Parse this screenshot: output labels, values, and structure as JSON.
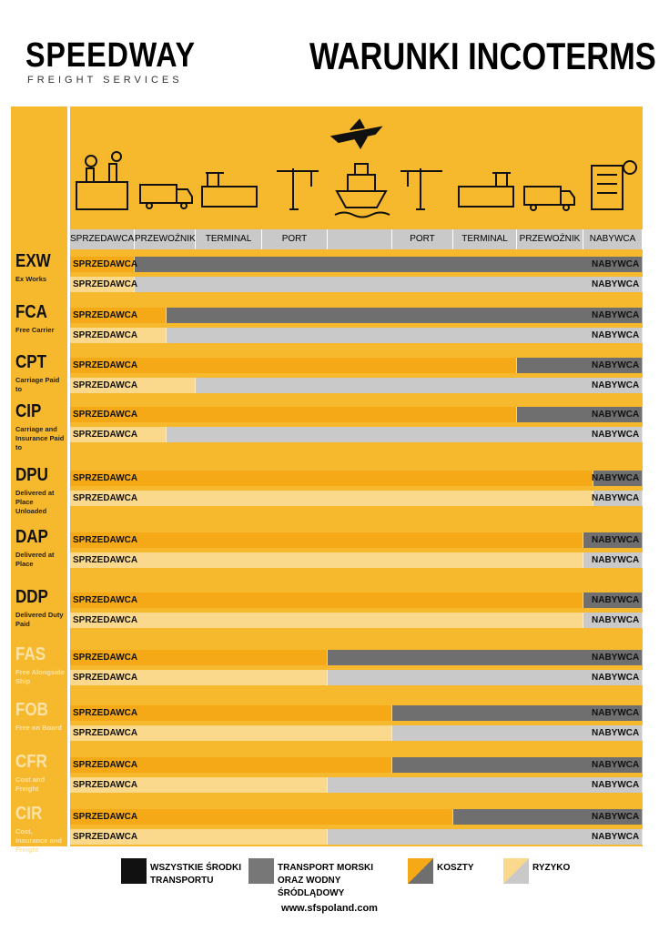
{
  "header": {
    "brand": "SPEEDWAY",
    "brand_sub": "FREIGHT SERVICES",
    "title": "WARUNKI INCOTERMS"
  },
  "columns": [
    "SPRZEDAWCA",
    "PRZEWOŹNIK",
    "TERMINAL",
    "PORT",
    "PORT",
    "TERMINAL",
    "PRZEWOŹNIK",
    "NABYWCA"
  ],
  "terms": [
    {
      "code": "EXW",
      "desc": "Ex Works",
      "cost": {
        "seller": "SPRZEDAWCA",
        "buyer": "NABYWCA"
      },
      "risk": {
        "seller": "SPRZEDAWCA",
        "buyer": "NABYWCA"
      }
    },
    {
      "code": "FCA",
      "desc": "Free Carrier",
      "cost": {
        "seller": "SPRZEDAWCA",
        "buyer": "NABYWCA"
      },
      "risk": {
        "seller": "SPRZEDAWCA",
        "buyer": "NABYWCA"
      }
    },
    {
      "code": "CPT",
      "desc": "Carriage Paid to",
      "cost": {
        "seller": "SPRZEDAWCA",
        "buyer": "NABYWCA"
      },
      "risk": {
        "seller": "SPRZEDAWCA",
        "buyer": "NABYWCA"
      }
    },
    {
      "code": "CIP",
      "desc": "Carriage and Insurance Paid to",
      "cost": {
        "seller": "SPRZEDAWCA",
        "buyer": "NABYWCA"
      },
      "risk": {
        "seller": "SPRZEDAWCA",
        "buyer": "NABYWCA"
      }
    },
    {
      "code": "DPU",
      "desc": "Delivered at Place Unloaded",
      "cost": {
        "seller": "SPRZEDAWCA",
        "buyer": "NABYWCA"
      },
      "risk": {
        "seller": "SPRZEDAWCA",
        "buyer": "NABYWCA"
      }
    },
    {
      "code": "DAP",
      "desc": "Delivered at Place",
      "cost": {
        "seller": "SPRZEDAWCA",
        "buyer": "NABYWCA"
      },
      "risk": {
        "seller": "SPRZEDAWCA",
        "buyer": "NABYWCA"
      }
    },
    {
      "code": "DDP",
      "desc": "Delivered Duty Paid",
      "cost": {
        "seller": "SPRZEDAWCA",
        "buyer": "NABYWCA"
      },
      "risk": {
        "seller": "SPRZEDAWCA",
        "buyer": "NABYWCA"
      }
    },
    {
      "code": "FAS",
      "desc": "Free Alongside Ship",
      "cost": {
        "seller": "SPRZEDAWCA",
        "buyer": "NABYWCA"
      },
      "risk": {
        "seller": "SPRZEDAWCA",
        "buyer": "NABYWCA"
      }
    },
    {
      "code": "FOB",
      "desc": "Free on Board",
      "cost": {
        "seller": "SPRZEDAWCA",
        "buyer": "NABYWCA"
      },
      "risk": {
        "seller": "SPRZEDAWCA",
        "buyer": "NABYWCA"
      }
    },
    {
      "code": "CFR",
      "desc": "Cost and Freight",
      "cost": {
        "seller": "SPRZEDAWCA",
        "buyer": "NABYWCA"
      },
      "risk": {
        "seller": "SPRZEDAWCA",
        "buyer": "NABYWCA"
      }
    },
    {
      "code": "CIR",
      "desc": "Cost, Insurance and Freight",
      "cost": {
        "seller": "SPRZEDAWCA",
        "buyer": "NABYWCA"
      },
      "risk": {
        "seller": "SPRZEDAWCA",
        "buyer": "NABYWCA"
      }
    }
  ],
  "legend": [
    "WSZYSTKIE ŚRODKI TRANSPORTU",
    "TRANSPORT MORSKI ORAZ WODNY ŚRÓDLĄDOWY",
    "KOSZTY",
    "RYZYKO"
  ],
  "footer": "www.sfspoland.com"
}
